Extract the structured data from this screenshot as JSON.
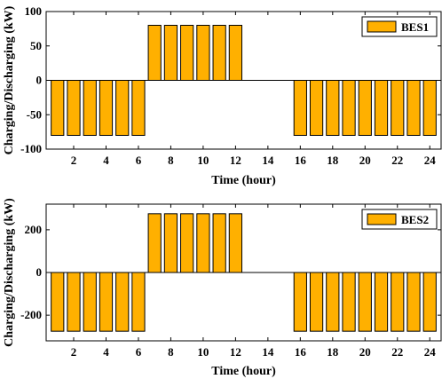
{
  "colors": {
    "bar_fill": "#FFB000",
    "bar_edge": "#000000",
    "axes": "#000000",
    "background": "#ffffff"
  },
  "chart_data": [
    {
      "type": "bar",
      "xlabel": "Time (hour)",
      "ylabel": "Charging/Discharging (kW)",
      "ylim": [
        -100,
        100
      ],
      "yticks": [
        -100,
        -50,
        0,
        50,
        100
      ],
      "xlim": [
        0.3,
        24.7
      ],
      "xticks": [
        2,
        4,
        6,
        8,
        10,
        12,
        14,
        16,
        18,
        20,
        22,
        24
      ],
      "grid": false,
      "legend_position": "top-right",
      "categories": [
        1,
        2,
        3,
        4,
        5,
        6,
        7,
        8,
        9,
        10,
        11,
        12,
        13,
        14,
        15,
        16,
        17,
        18,
        19,
        20,
        21,
        22,
        23,
        24
      ],
      "series": [
        {
          "name": "BES1",
          "values": [
            -80,
            -80,
            -80,
            -80,
            -80,
            -80,
            80,
            80,
            80,
            80,
            80,
            80,
            0,
            0,
            0,
            -80,
            -80,
            -80,
            -80,
            -80,
            -80,
            -80,
            -80,
            -80
          ]
        }
      ]
    },
    {
      "type": "bar",
      "xlabel": "Time (hour)",
      "ylabel": "Charging/Discharging (kW)",
      "ylim": [
        -320,
        320
      ],
      "yticks": [
        -200,
        0,
        200
      ],
      "xlim": [
        0.3,
        24.7
      ],
      "xticks": [
        2,
        4,
        6,
        8,
        10,
        12,
        14,
        16,
        18,
        20,
        22,
        24
      ],
      "grid": false,
      "legend_position": "top-right",
      "categories": [
        1,
        2,
        3,
        4,
        5,
        6,
        7,
        8,
        9,
        10,
        11,
        12,
        13,
        14,
        15,
        16,
        17,
        18,
        19,
        20,
        21,
        22,
        23,
        24
      ],
      "series": [
        {
          "name": "BES2",
          "values": [
            -275,
            -275,
            -275,
            -275,
            -275,
            -275,
            275,
            275,
            275,
            275,
            275,
            275,
            0,
            0,
            0,
            -275,
            -275,
            -275,
            -275,
            -275,
            -275,
            -275,
            -275,
            -275
          ]
        }
      ]
    }
  ]
}
